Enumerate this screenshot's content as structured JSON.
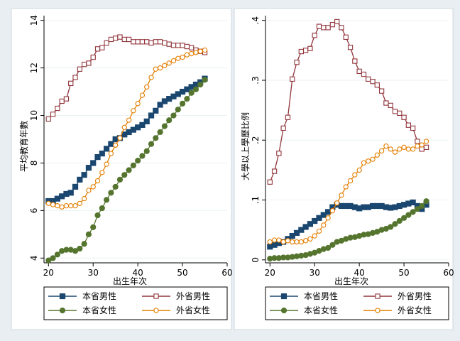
{
  "chart_data": [
    {
      "type": "line",
      "xlabel": "出生年次",
      "ylabel": "平均教育年數",
      "xlim": [
        19,
        60
      ],
      "ylim": [
        3.8,
        14.2
      ],
      "xticks": [
        20,
        30,
        40,
        50,
        60
      ],
      "xtick_labels": [
        "20",
        "30",
        "40",
        "50",
        "60"
      ],
      "yticks": [
        4,
        6,
        8,
        10,
        12,
        14
      ],
      "ytick_labels": [
        "4",
        "6",
        "8",
        "10",
        "12",
        "14"
      ],
      "grid": true,
      "legend": "bottom",
      "series": [
        {
          "name": "本省男性",
          "color": "#1a476f",
          "marker": "square",
          "x": [
            20,
            21,
            22,
            23,
            24,
            25,
            26,
            27,
            28,
            29,
            30,
            31,
            32,
            33,
            34,
            35,
            36,
            37,
            38,
            39,
            40,
            41,
            42,
            43,
            44,
            45,
            46,
            47,
            48,
            49,
            50,
            51,
            52,
            53,
            54,
            55
          ],
          "y": [
            6.4,
            6.4,
            6.5,
            6.6,
            6.7,
            6.75,
            7.0,
            7.3,
            7.5,
            7.8,
            8.0,
            8.25,
            8.4,
            8.6,
            8.8,
            9.0,
            9.05,
            9.2,
            9.3,
            9.4,
            9.5,
            9.6,
            9.75,
            10.0,
            10.2,
            10.45,
            10.6,
            10.7,
            10.8,
            10.9,
            11.0,
            11.1,
            11.2,
            11.3,
            11.4,
            11.55
          ]
        },
        {
          "name": "外省男性",
          "color": "#90353b",
          "marker": "hollow-square",
          "x": [
            20,
            21,
            22,
            23,
            24,
            25,
            26,
            27,
            28,
            29,
            30,
            31,
            32,
            33,
            34,
            35,
            36,
            37,
            38,
            39,
            40,
            41,
            42,
            43,
            44,
            45,
            46,
            47,
            48,
            49,
            50,
            51,
            52,
            53,
            54,
            55
          ],
          "y": [
            9.85,
            10.05,
            10.3,
            10.6,
            10.7,
            11.35,
            11.6,
            11.95,
            12.15,
            12.2,
            12.45,
            12.8,
            12.85,
            13.05,
            13.2,
            13.25,
            13.3,
            13.2,
            13.2,
            13.1,
            13.1,
            13.1,
            13.1,
            13.05,
            13.1,
            13.1,
            13.05,
            13.0,
            12.95,
            12.95,
            12.95,
            12.9,
            12.85,
            12.75,
            12.7,
            12.65
          ]
        },
        {
          "name": "本省女性",
          "color": "#55752f",
          "marker": "circle",
          "x": [
            20,
            21,
            22,
            23,
            24,
            25,
            26,
            27,
            28,
            29,
            30,
            31,
            32,
            33,
            34,
            35,
            36,
            37,
            38,
            39,
            40,
            41,
            42,
            43,
            44,
            45,
            46,
            47,
            48,
            49,
            50,
            51,
            52,
            53,
            54,
            55
          ],
          "y": [
            3.9,
            4.0,
            4.15,
            4.3,
            4.35,
            4.35,
            4.3,
            4.4,
            4.6,
            5.0,
            5.3,
            5.8,
            6.1,
            6.45,
            6.75,
            7.0,
            7.3,
            7.5,
            7.7,
            7.9,
            8.1,
            8.3,
            8.5,
            8.8,
            9.05,
            9.3,
            9.55,
            9.8,
            10.0,
            10.25,
            10.5,
            10.7,
            10.95,
            11.1,
            11.3,
            11.5
          ]
        },
        {
          "name": "外省女性",
          "color": "#e37e00",
          "marker": "hollow-circle",
          "x": [
            20,
            21,
            22,
            23,
            24,
            25,
            26,
            27,
            28,
            29,
            30,
            31,
            32,
            33,
            34,
            35,
            36,
            37,
            38,
            39,
            40,
            41,
            42,
            43,
            44,
            45,
            46,
            47,
            48,
            49,
            50,
            51,
            52,
            53,
            54,
            55
          ],
          "y": [
            6.3,
            6.25,
            6.2,
            6.15,
            6.2,
            6.2,
            6.2,
            6.3,
            6.5,
            6.85,
            7.0,
            7.25,
            7.6,
            7.95,
            8.4,
            8.75,
            9.05,
            9.5,
            9.8,
            10.2,
            10.5,
            10.85,
            11.2,
            11.6,
            11.95,
            12.0,
            12.1,
            12.2,
            12.3,
            12.4,
            12.45,
            12.55,
            12.6,
            12.65,
            12.7,
            12.75
          ]
        }
      ]
    },
    {
      "type": "line",
      "xlabel": "出生年次",
      "ylabel": "大學以上學歷比例",
      "xlim": [
        19,
        60
      ],
      "ylim": [
        -0.005,
        0.408
      ],
      "xticks": [
        20,
        30,
        40,
        50,
        60
      ],
      "xtick_labels": [
        "20",
        "30",
        "40",
        "50",
        "60"
      ],
      "yticks": [
        0,
        0.1,
        0.2,
        0.3,
        0.4
      ],
      "ytick_labels": [
        "0",
        ".1",
        ".2",
        ".3",
        ".4"
      ],
      "grid": true,
      "legend": "bottom",
      "series": [
        {
          "name": "本省男性",
          "color": "#1a476f",
          "marker": "square",
          "x": [
            20,
            21,
            22,
            23,
            24,
            25,
            26,
            27,
            28,
            29,
            30,
            31,
            32,
            33,
            34,
            35,
            36,
            37,
            38,
            39,
            40,
            41,
            42,
            43,
            44,
            45,
            46,
            47,
            48,
            49,
            50,
            51,
            52,
            53,
            54,
            55
          ],
          "y": [
            0.022,
            0.025,
            0.028,
            0.03,
            0.035,
            0.04,
            0.045,
            0.05,
            0.055,
            0.06,
            0.065,
            0.07,
            0.075,
            0.08,
            0.088,
            0.092,
            0.09,
            0.09,
            0.09,
            0.088,
            0.086,
            0.088,
            0.088,
            0.09,
            0.09,
            0.09,
            0.088,
            0.087,
            0.088,
            0.09,
            0.092,
            0.094,
            0.096,
            0.09,
            0.085,
            0.092
          ]
        },
        {
          "name": "外省男性",
          "color": "#90353b",
          "marker": "hollow-square",
          "x": [
            20,
            21,
            22,
            23,
            24,
            25,
            26,
            27,
            28,
            29,
            30,
            31,
            32,
            33,
            34,
            35,
            36,
            37,
            38,
            39,
            40,
            41,
            42,
            43,
            44,
            45,
            46,
            47,
            48,
            49,
            50,
            51,
            52,
            53,
            54,
            55
          ],
          "y": [
            0.13,
            0.148,
            0.178,
            0.22,
            0.238,
            0.302,
            0.33,
            0.348,
            0.35,
            0.353,
            0.375,
            0.39,
            0.388,
            0.388,
            0.393,
            0.398,
            0.388,
            0.372,
            0.355,
            0.332,
            0.315,
            0.31,
            0.302,
            0.298,
            0.292,
            0.282,
            0.262,
            0.258,
            0.248,
            0.245,
            0.238,
            0.225,
            0.22,
            0.198,
            0.185,
            0.188
          ]
        },
        {
          "name": "本省女性",
          "color": "#55752f",
          "marker": "circle",
          "x": [
            20,
            21,
            22,
            23,
            24,
            25,
            26,
            27,
            28,
            29,
            30,
            31,
            32,
            33,
            34,
            35,
            36,
            37,
            38,
            39,
            40,
            41,
            42,
            43,
            44,
            45,
            46,
            47,
            48,
            49,
            50,
            51,
            52,
            53,
            54,
            55
          ],
          "y": [
            0.002,
            0.003,
            0.003,
            0.004,
            0.004,
            0.005,
            0.006,
            0.007,
            0.008,
            0.01,
            0.012,
            0.015,
            0.018,
            0.02,
            0.025,
            0.03,
            0.032,
            0.035,
            0.037,
            0.038,
            0.04,
            0.042,
            0.043,
            0.045,
            0.047,
            0.05,
            0.052,
            0.055,
            0.06,
            0.065,
            0.07,
            0.075,
            0.08,
            0.085,
            0.09,
            0.098
          ]
        },
        {
          "name": "外省女性",
          "color": "#e37e00",
          "marker": "hollow-circle",
          "x": [
            20,
            21,
            22,
            23,
            24,
            25,
            26,
            27,
            28,
            29,
            30,
            31,
            32,
            33,
            34,
            35,
            36,
            37,
            38,
            39,
            40,
            41,
            42,
            43,
            44,
            45,
            46,
            47,
            48,
            49,
            50,
            51,
            52,
            53,
            54,
            55
          ],
          "y": [
            0.03,
            0.033,
            0.033,
            0.03,
            0.032,
            0.03,
            0.03,
            0.03,
            0.032,
            0.035,
            0.04,
            0.048,
            0.058,
            0.07,
            0.082,
            0.095,
            0.108,
            0.122,
            0.132,
            0.142,
            0.15,
            0.162,
            0.165,
            0.168,
            0.175,
            0.182,
            0.19,
            0.185,
            0.18,
            0.185,
            0.188,
            0.185,
            0.185,
            0.19,
            0.192,
            0.198
          ]
        }
      ]
    }
  ]
}
